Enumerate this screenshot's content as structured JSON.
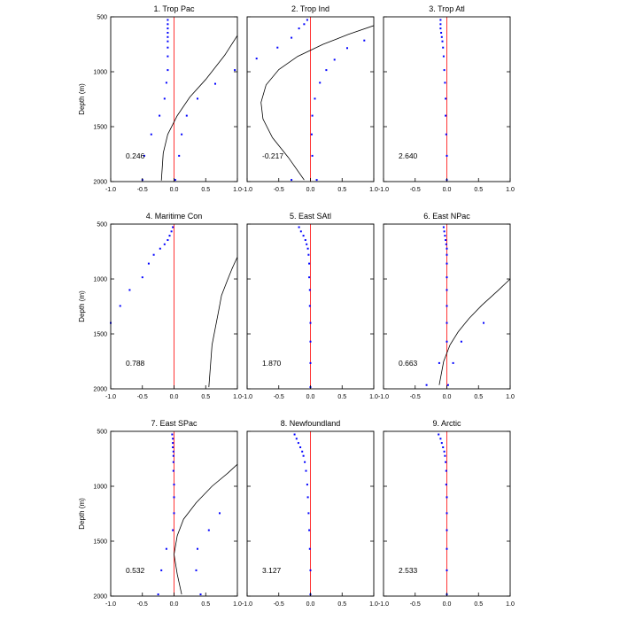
{
  "chart_data": {
    "type": "scatter",
    "ylabel": "Depth (m)",
    "xlim": [
      -1,
      1
    ],
    "ylim": [
      500,
      2000
    ],
    "y_inverted": true,
    "xticks": [
      "-1.0",
      "-0.5",
      "0.0",
      "0.5",
      "1.0"
    ],
    "yticks": [
      "500",
      "1000",
      "1500",
      "2000"
    ],
    "colors": {
      "points": "#0000ff",
      "zero_line": "#ff0000",
      "curve": "#000000"
    },
    "panels": [
      {
        "title": "1. Trop Pac",
        "value_label": "0.246",
        "points": [
          [
            -0.1,
            528
          ],
          [
            -0.1,
            567
          ],
          [
            -0.1,
            606
          ],
          [
            -0.1,
            645
          ],
          [
            -0.1,
            684
          ],
          [
            -0.1,
            723
          ],
          [
            -0.1,
            780
          ],
          [
            -0.1,
            860
          ],
          [
            -0.1,
            985
          ],
          [
            0.96,
            985
          ],
          [
            -0.12,
            1100
          ],
          [
            0.65,
            1110
          ],
          [
            -0.15,
            1245
          ],
          [
            0.37,
            1245
          ],
          [
            -0.23,
            1400
          ],
          [
            0.2,
            1400
          ],
          [
            -0.36,
            1570
          ],
          [
            0.12,
            1570
          ],
          [
            -0.47,
            1765
          ],
          [
            0.08,
            1765
          ],
          [
            -0.5,
            1985
          ],
          [
            0.02,
            1985
          ]
        ],
        "curve": [
          [
            1.0,
            670
          ],
          [
            0.8,
            850
          ],
          [
            0.5,
            1070
          ],
          [
            0.25,
            1230
          ],
          [
            0.05,
            1400
          ],
          [
            -0.1,
            1570
          ],
          [
            -0.17,
            1740
          ],
          [
            -0.2,
            1990
          ]
        ]
      },
      {
        "title": "2. Trop Ind",
        "value_label": "-0.217",
        "points": [
          [
            -0.05,
            528
          ],
          [
            -0.1,
            567
          ],
          [
            -0.18,
            606
          ],
          [
            -0.3,
            690
          ],
          [
            -0.52,
            780
          ],
          [
            -0.85,
            880
          ],
          [
            0.85,
            715
          ],
          [
            0.58,
            785
          ],
          [
            0.38,
            890
          ],
          [
            0.25,
            985
          ],
          [
            0.15,
            1100
          ],
          [
            0.07,
            1245
          ],
          [
            0.03,
            1400
          ],
          [
            0.02,
            1570
          ],
          [
            0.03,
            1765
          ],
          [
            0.1,
            1985
          ],
          [
            -0.3,
            1985
          ]
        ],
        "curve": [
          [
            1.0,
            580
          ],
          [
            0.6,
            660
          ],
          [
            0.2,
            750
          ],
          [
            -0.2,
            860
          ],
          [
            -0.5,
            980
          ],
          [
            -0.7,
            1120
          ],
          [
            -0.78,
            1280
          ],
          [
            -0.75,
            1430
          ],
          [
            -0.6,
            1600
          ],
          [
            -0.35,
            1780
          ],
          [
            -0.1,
            1985
          ]
        ]
      },
      {
        "title": "3. Trop Atl",
        "value_label": "2.640",
        "points": [
          [
            -0.1,
            528
          ],
          [
            -0.1,
            567
          ],
          [
            -0.1,
            606
          ],
          [
            -0.09,
            645
          ],
          [
            -0.08,
            684
          ],
          [
            -0.07,
            723
          ],
          [
            -0.06,
            780
          ],
          [
            -0.05,
            860
          ],
          [
            -0.04,
            985
          ],
          [
            -0.03,
            1100
          ],
          [
            -0.02,
            1245
          ],
          [
            -0.02,
            1400
          ],
          [
            -0.01,
            1570
          ],
          [
            0.0,
            1765
          ],
          [
            0.0,
            1985
          ]
        ],
        "curve": []
      },
      {
        "title": "4. Maritime Con",
        "value_label": "0.788",
        "points": [
          [
            -0.02,
            528
          ],
          [
            -0.04,
            567
          ],
          [
            -0.07,
            606
          ],
          [
            -0.1,
            645
          ],
          [
            -0.15,
            684
          ],
          [
            -0.22,
            723
          ],
          [
            -0.32,
            780
          ],
          [
            -0.4,
            860
          ],
          [
            -0.5,
            985
          ],
          [
            -0.7,
            1100
          ],
          [
            -0.85,
            1245
          ],
          [
            -1.0,
            1400
          ]
        ],
        "curve": [
          [
            1.0,
            800
          ],
          [
            0.92,
            900
          ],
          [
            0.85,
            1000
          ],
          [
            0.75,
            1150
          ],
          [
            0.7,
            1300
          ],
          [
            0.65,
            1450
          ],
          [
            0.6,
            1600
          ],
          [
            0.58,
            1750
          ],
          [
            0.55,
            1985
          ]
        ]
      },
      {
        "title": "5. East SAtl",
        "value_label": "1.870",
        "points": [
          [
            -0.18,
            528
          ],
          [
            -0.15,
            567
          ],
          [
            -0.11,
            606
          ],
          [
            -0.08,
            645
          ],
          [
            -0.06,
            684
          ],
          [
            -0.04,
            723
          ],
          [
            -0.03,
            780
          ],
          [
            -0.02,
            860
          ],
          [
            -0.02,
            985
          ],
          [
            -0.01,
            1100
          ],
          [
            -0.01,
            1245
          ],
          [
            0.0,
            1400
          ],
          [
            0.0,
            1570
          ],
          [
            0.0,
            1765
          ],
          [
            0.0,
            1985
          ]
        ],
        "curve": []
      },
      {
        "title": "6. East NPac",
        "value_label": "0.663",
        "points": [
          [
            -0.05,
            528
          ],
          [
            -0.04,
            567
          ],
          [
            -0.03,
            606
          ],
          [
            -0.02,
            645
          ],
          [
            -0.01,
            684
          ],
          [
            0.0,
            723
          ],
          [
            0.0,
            780
          ],
          [
            0.0,
            860
          ],
          [
            0.0,
            985
          ],
          [
            0.0,
            1100
          ],
          [
            0.0,
            1245
          ],
          [
            0.0,
            1400
          ],
          [
            0.58,
            1400
          ],
          [
            0.0,
            1570
          ],
          [
            0.23,
            1570
          ],
          [
            -0.12,
            1765
          ],
          [
            0.1,
            1765
          ],
          [
            -0.32,
            1965
          ],
          [
            0.02,
            1965
          ]
        ],
        "curve": [
          [
            1.0,
            1000
          ],
          [
            0.8,
            1110
          ],
          [
            0.55,
            1240
          ],
          [
            0.35,
            1360
          ],
          [
            0.18,
            1480
          ],
          [
            0.05,
            1600
          ],
          [
            -0.05,
            1750
          ],
          [
            -0.12,
            1965
          ]
        ]
      },
      {
        "title": "7. East SPac",
        "value_label": "0.532",
        "points": [
          [
            -0.03,
            528
          ],
          [
            -0.02,
            567
          ],
          [
            -0.02,
            606
          ],
          [
            -0.02,
            645
          ],
          [
            -0.01,
            684
          ],
          [
            -0.01,
            723
          ],
          [
            -0.01,
            780
          ],
          [
            -0.01,
            860
          ],
          [
            0.0,
            985
          ],
          [
            0.0,
            1100
          ],
          [
            0.0,
            1245
          ],
          [
            0.72,
            1245
          ],
          [
            -0.02,
            1400
          ],
          [
            0.55,
            1400
          ],
          [
            -0.12,
            1570
          ],
          [
            0.37,
            1570
          ],
          [
            -0.2,
            1765
          ],
          [
            0.35,
            1765
          ],
          [
            -0.25,
            1985
          ],
          [
            0.42,
            1985
          ]
        ],
        "curve": [
          [
            1.0,
            800
          ],
          [
            0.85,
            880
          ],
          [
            0.6,
            1000
          ],
          [
            0.35,
            1150
          ],
          [
            0.15,
            1300
          ],
          [
            0.05,
            1450
          ],
          [
            0.0,
            1620
          ],
          [
            0.05,
            1800
          ],
          [
            0.12,
            1985
          ]
        ]
      },
      {
        "title": "8. Newfoundland",
        "value_label": "3.127",
        "points": [
          [
            -0.25,
            528
          ],
          [
            -0.22,
            567
          ],
          [
            -0.19,
            606
          ],
          [
            -0.16,
            645
          ],
          [
            -0.13,
            684
          ],
          [
            -0.11,
            723
          ],
          [
            -0.09,
            780
          ],
          [
            -0.07,
            860
          ],
          [
            -0.05,
            985
          ],
          [
            -0.04,
            1100
          ],
          [
            -0.03,
            1245
          ],
          [
            -0.02,
            1400
          ],
          [
            -0.01,
            1570
          ],
          [
            0.0,
            1765
          ],
          [
            0.0,
            1985
          ]
        ],
        "curve": []
      },
      {
        "title": "9. Arctic",
        "value_label": "2.533",
        "points": [
          [
            -0.13,
            528
          ],
          [
            -0.1,
            567
          ],
          [
            -0.08,
            606
          ],
          [
            -0.06,
            645
          ],
          [
            -0.04,
            684
          ],
          [
            -0.03,
            723
          ],
          [
            -0.02,
            780
          ],
          [
            -0.01,
            860
          ],
          [
            -0.01,
            985
          ],
          [
            0.0,
            1100
          ],
          [
            0.0,
            1245
          ],
          [
            0.0,
            1400
          ],
          [
            0.0,
            1570
          ],
          [
            0.0,
            1765
          ],
          [
            0.0,
            1985
          ]
        ],
        "curve": []
      }
    ]
  }
}
